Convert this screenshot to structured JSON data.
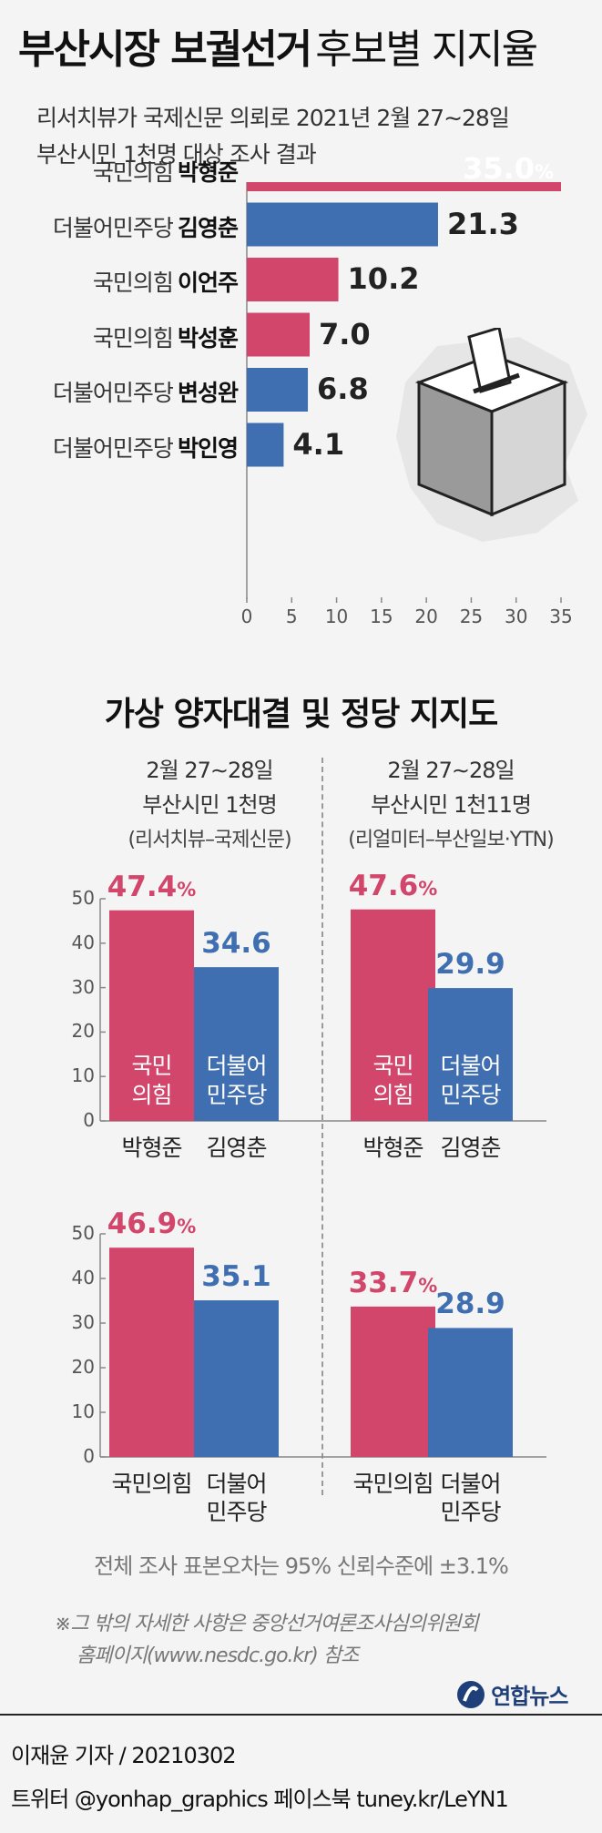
{
  "title": {
    "bold": "부산시장 보궐선거",
    "light": "후보별 지지율"
  },
  "subtitle": [
    "리서치뷰가 국제신문 의뢰로 2021년 2월 27∼28일",
    "부산시민 1천명 대상 조사 결과"
  ],
  "colors": {
    "ppp": "#d1466a",
    "dem": "#3f6fb0"
  },
  "chart_data": [
    {
      "type": "bar",
      "orientation": "horizontal",
      "categories": [
        "박형준",
        "김영춘",
        "이언주",
        "박성훈",
        "변성완",
        "박인영"
      ],
      "parties": [
        "국민의힘",
        "더불어민주당",
        "국민의힘",
        "국민의힘",
        "더불어민주당",
        "더불어민주당"
      ],
      "party_keys": [
        "ppp",
        "dem",
        "ppp",
        "ppp",
        "dem",
        "dem"
      ],
      "values": [
        35.0,
        21.3,
        10.2,
        7.0,
        6.8,
        4.1
      ],
      "value_labels": [
        "35.0",
        "21.3",
        "10.2",
        "7.0",
        "6.8",
        "4.1"
      ],
      "xlim": [
        0,
        35
      ],
      "xticks": [
        0,
        5,
        10,
        15,
        20,
        25,
        30,
        35
      ]
    },
    {
      "type": "bar",
      "title": "가상 양자대결 및 정당 지지도",
      "panels": [
        {
          "header": [
            "2월 27∼28일",
            "부산시민 1천명"
          ],
          "source": "(리서치뷰–국제신문)",
          "head_to_head": {
            "categories": [
              "박형준",
              "김영춘"
            ],
            "inner_labels": [
              [
                "국민",
                "의힘"
              ],
              [
                "더불어",
                "민주당"
              ]
            ],
            "values": [
              47.4,
              34.6
            ],
            "value_labels": [
              "47.4",
              "34.6"
            ],
            "percent_sign": [
              true,
              false
            ]
          },
          "party_support": {
            "categories": [
              [
                "국민의힘"
              ],
              [
                "더불어",
                "민주당"
              ]
            ],
            "values": [
              46.9,
              35.1
            ],
            "value_labels": [
              "46.9",
              "35.1"
            ],
            "percent_sign": [
              true,
              false
            ]
          }
        },
        {
          "header": [
            "2월 27∼28일",
            "부산시민 1천11명"
          ],
          "source": "(리얼미터–부산일보·YTN)",
          "head_to_head": {
            "categories": [
              "박형준",
              "김영춘"
            ],
            "inner_labels": [
              [
                "국민",
                "의힘"
              ],
              [
                "더불어",
                "민주당"
              ]
            ],
            "values": [
              47.6,
              29.9
            ],
            "value_labels": [
              "47.6",
              "29.9"
            ],
            "percent_sign": [
              true,
              false
            ]
          },
          "party_support": {
            "categories": [
              [
                "국민의힘"
              ],
              [
                "더불어",
                "민주당"
              ]
            ],
            "values": [
              33.7,
              28.9
            ],
            "value_labels": [
              "33.7",
              "28.9"
            ],
            "percent_sign": [
              true,
              false
            ]
          }
        }
      ],
      "ylim": [
        0,
        50
      ],
      "yticks": [
        0,
        10,
        20,
        30,
        40,
        50
      ]
    }
  ],
  "percent_symbol": "%",
  "notes": {
    "margin": "전체 조사 표본오차는 95% 신뢰수준에 ±3.1%",
    "detail": [
      "※그 밖의 자세한 사항은 중앙선거여론조사심의위원회",
      "홈페이지(www.nesdc.go.kr) 참조"
    ]
  },
  "logo": "연합뉴스",
  "credits": [
    "이재윤 기자 / 20210302",
    "트위터 @yonhap_graphics  페이스북 tuney.kr/LeYN1"
  ]
}
